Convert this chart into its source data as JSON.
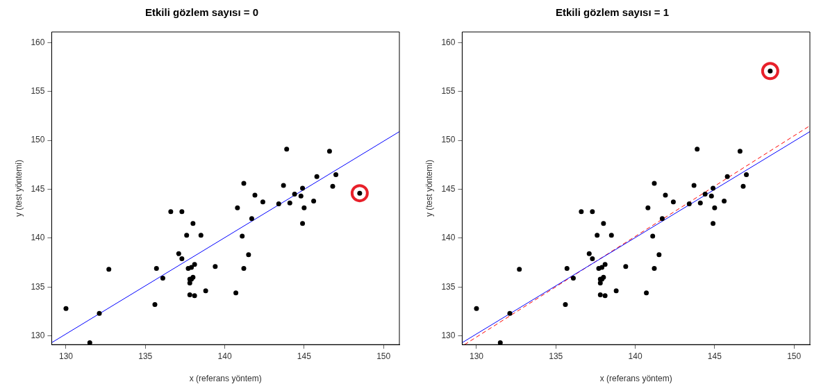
{
  "chart_data": [
    {
      "type": "scatter",
      "title": "Etkili gözlem sayısı = 0",
      "xlabel": "x (referans yöntem)",
      "ylabel": "y (test yöntemi)",
      "xlim": [
        129.1,
        151
      ],
      "ylim": [
        129.1,
        161.1
      ],
      "xticks": [
        130,
        135,
        140,
        145,
        150
      ],
      "yticks": [
        130,
        135,
        140,
        145,
        150,
        155,
        160
      ],
      "grid": false,
      "legend": false,
      "marker": "circle",
      "series": [
        {
          "type": "scatter",
          "color": "#000000",
          "x": [
            130.0,
            131.5,
            132.1,
            132.7,
            135.6,
            135.7,
            136.1,
            136.6,
            137.3,
            138.0,
            137.6,
            138.5,
            137.1,
            137.3,
            137.7,
            137.9,
            138.1,
            139.4,
            137.8,
            138.0,
            137.9,
            137.8,
            138.8,
            137.8,
            138.1,
            143.9,
            146.6,
            145.8,
            147.0,
            141.2,
            143.7,
            141.9,
            144.4,
            144.9,
            144.8,
            146.8,
            148.5,
            142.4,
            143.4,
            144.1,
            145.6,
            140.8,
            145.0,
            141.7,
            144.9,
            141.1,
            141.5,
            141.2,
            140.7
          ],
          "values": [
            132.8,
            129.3,
            132.3,
            136.8,
            133.2,
            136.9,
            135.9,
            142.7,
            142.7,
            141.5,
            140.3,
            140.3,
            138.4,
            137.9,
            136.9,
            137.0,
            137.3,
            137.1,
            135.8,
            136.0,
            135.8,
            135.4,
            134.6,
            134.2,
            134.1,
            149.1,
            148.9,
            146.3,
            146.5,
            145.6,
            145.4,
            144.4,
            144.5,
            145.1,
            144.3,
            145.3,
            144.6,
            143.7,
            143.5,
            143.6,
            143.8,
            143.1,
            143.1,
            142.0,
            141.5,
            140.2,
            138.3,
            136.9,
            134.4
          ]
        },
        {
          "type": "scatter",
          "color": "#e8202a",
          "x": [
            148.5
          ],
          "values": [
            144.6
          ]
        },
        {
          "type": "line",
          "color": "#0000ff",
          "line_style": "solid",
          "marker": "none",
          "x": [
            129.1,
            151
          ],
          "values": [
            129.3,
            150.9
          ]
        }
      ]
    },
    {
      "type": "scatter",
      "title": "Etkili gözlem sayısı = 1",
      "xlabel": "x (referans yöntem)",
      "ylabel": "y (test yöntemi)",
      "xlim": [
        129.1,
        151
      ],
      "ylim": [
        129.1,
        161.1
      ],
      "xticks": [
        130,
        135,
        140,
        145,
        150
      ],
      "yticks": [
        130,
        135,
        140,
        145,
        150,
        155,
        160
      ],
      "grid": false,
      "legend": false,
      "marker": "circle",
      "series": [
        {
          "type": "scatter",
          "color": "#000000",
          "x": [
            130.0,
            131.5,
            132.1,
            132.7,
            135.6,
            135.7,
            136.1,
            136.6,
            137.3,
            138.0,
            137.6,
            138.5,
            137.1,
            137.3,
            137.7,
            137.9,
            138.1,
            139.4,
            137.8,
            138.0,
            137.9,
            137.8,
            138.8,
            137.8,
            138.1,
            143.9,
            146.6,
            145.8,
            147.0,
            141.2,
            143.7,
            141.9,
            144.4,
            144.9,
            144.8,
            146.8,
            148.5,
            142.4,
            143.4,
            144.1,
            145.6,
            140.8,
            145.0,
            141.7,
            144.9,
            141.1,
            141.5,
            141.2,
            140.7
          ],
          "values": [
            132.8,
            129.3,
            132.3,
            136.8,
            133.2,
            136.9,
            135.9,
            142.7,
            142.7,
            141.5,
            140.3,
            140.3,
            138.4,
            137.9,
            136.9,
            137.0,
            137.3,
            137.1,
            135.8,
            136.0,
            135.8,
            135.4,
            134.6,
            134.2,
            134.1,
            149.1,
            148.9,
            146.3,
            146.5,
            145.6,
            145.4,
            144.4,
            144.5,
            145.1,
            144.3,
            145.3,
            157.1,
            143.7,
            143.5,
            143.6,
            143.8,
            143.1,
            143.1,
            142.0,
            141.5,
            140.2,
            138.3,
            136.9,
            134.4
          ]
        },
        {
          "type": "scatter",
          "color": "#e8202a",
          "x": [
            148.5
          ],
          "values": [
            157.1
          ]
        },
        {
          "type": "line",
          "color": "#0000ff",
          "line_style": "solid",
          "marker": "none",
          "x": [
            129.1,
            151
          ],
          "values": [
            129.3,
            150.9
          ]
        },
        {
          "type": "line",
          "color": "#ff0000",
          "line_style": "dashed",
          "marker": "none",
          "x": [
            129.25,
            151
          ],
          "values": [
            129.1,
            151.5
          ]
        }
      ]
    }
  ]
}
